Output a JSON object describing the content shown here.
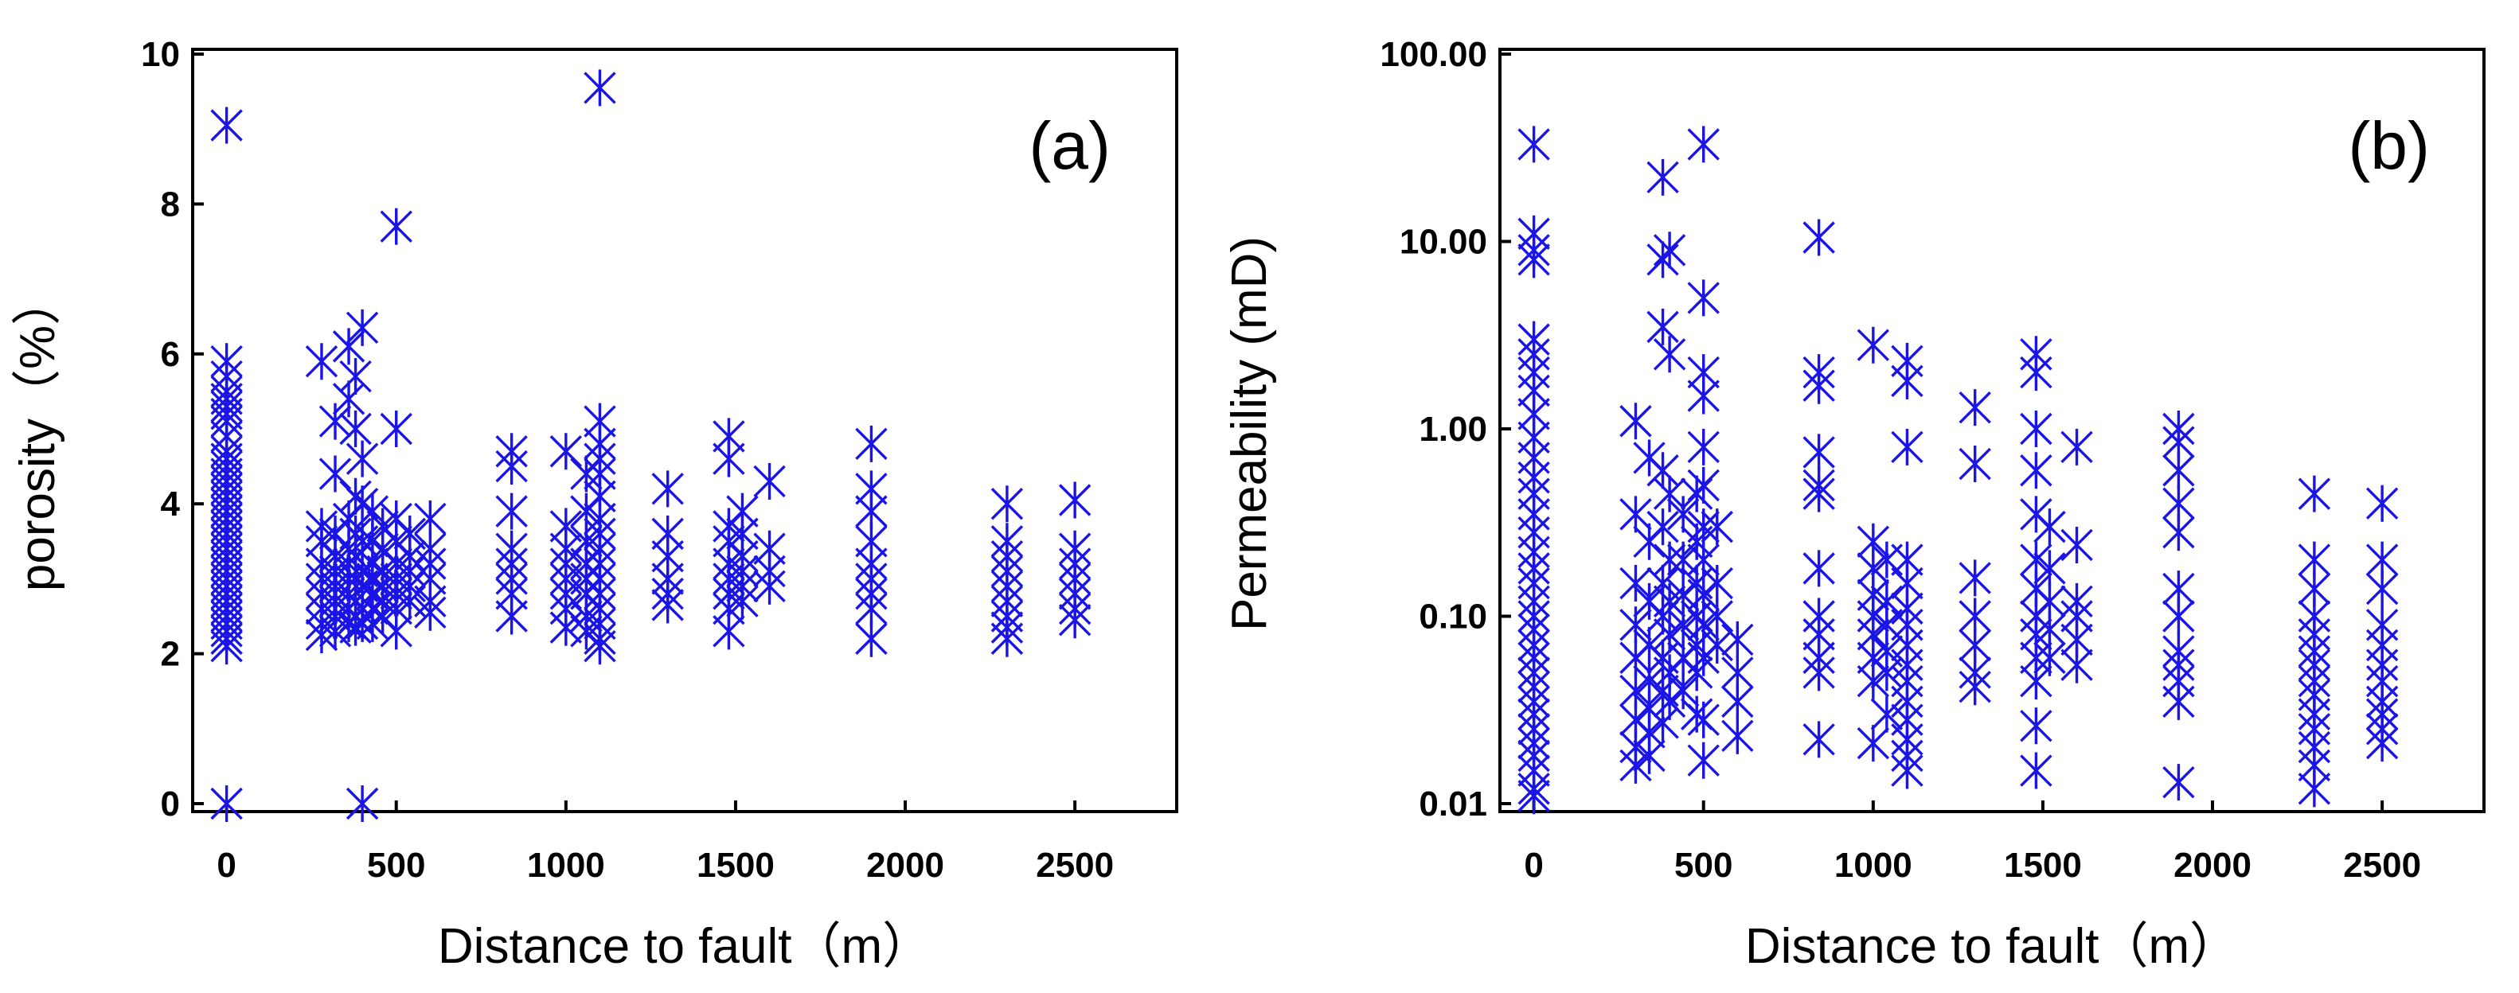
{
  "chart_data": [
    {
      "type": "scatter",
      "panel_label": "(a)",
      "xlabel": "Distance to fault（m）",
      "ylabel": "porosity（%）",
      "xlim": [
        -100,
        2800
      ],
      "ylim": [
        0,
        10
      ],
      "yscale": "linear",
      "xticks": [
        0,
        500,
        1000,
        1500,
        2000,
        2500
      ],
      "yticks": [
        0,
        2,
        4,
        6,
        8,
        10
      ],
      "ytick_labels": [
        "0",
        "2",
        "4",
        "6",
        "8",
        "10"
      ],
      "marker": "asterisk",
      "color": "#1a14e6",
      "series": [
        {
          "x": 0,
          "y": [
            9.05,
            0,
            5.9,
            5.7,
            5.5,
            5.4,
            5.3,
            5.2,
            5.1,
            4.9,
            4.7,
            4.6,
            4.5,
            4.4,
            4.3,
            4.2,
            4.1,
            4.0,
            3.9,
            3.8,
            3.7,
            3.6,
            3.5,
            3.4,
            3.3,
            3.2,
            3.1,
            3.0,
            2.9,
            2.8,
            2.7,
            2.6,
            2.5,
            2.4,
            2.3,
            2.2,
            2.1
          ]
        },
        {
          "x": 280,
          "y": [
            5.9,
            3.7,
            3.5,
            3.2,
            3.0,
            2.8,
            2.6,
            2.4,
            2.25
          ]
        },
        {
          "x": 320,
          "y": [
            5.1,
            4.4,
            3.6,
            3.3,
            3.1,
            2.9,
            2.7,
            2.5,
            2.3
          ]
        },
        {
          "x": 360,
          "y": [
            6.1,
            5.4,
            3.8,
            3.4,
            3.2,
            3.0,
            2.8,
            2.6,
            2.4
          ]
        },
        {
          "x": 380,
          "y": [
            5.7,
            5.0,
            4.1,
            3.6,
            3.3,
            3.0,
            2.7,
            2.5,
            2.35
          ]
        },
        {
          "x": 400,
          "y": [
            6.35,
            4.6,
            4.0,
            3.5,
            3.1,
            2.9,
            2.6,
            2.4,
            0
          ]
        },
        {
          "x": 430,
          "y": [
            3.9,
            3.5,
            3.2,
            3.0,
            2.8,
            2.6,
            2.4
          ]
        },
        {
          "x": 460,
          "y": [
            3.7,
            3.4,
            3.1,
            2.9,
            2.7,
            2.5
          ]
        },
        {
          "x": 500,
          "y": [
            7.7,
            5.0,
            3.8,
            3.5,
            3.2,
            3.0,
            2.8,
            2.6,
            2.3
          ]
        },
        {
          "x": 540,
          "y": [
            3.6,
            3.3,
            3.1,
            2.9,
            2.7
          ]
        },
        {
          "x": 600,
          "y": [
            3.8,
            3.4,
            3.2,
            3.0,
            2.7,
            2.55
          ]
        },
        {
          "x": 840,
          "y": [
            4.7,
            4.5,
            3.9,
            3.4,
            3.2,
            3.0,
            2.8,
            2.5
          ]
        },
        {
          "x": 1000,
          "y": [
            4.7,
            3.7,
            3.4,
            3.2,
            3.0,
            2.8,
            2.6,
            2.35
          ]
        },
        {
          "x": 1060,
          "y": [
            4.4,
            3.9,
            3.5,
            3.2,
            3.0,
            2.8,
            2.5,
            2.3
          ]
        },
        {
          "x": 1100,
          "y": [
            9.55,
            5.1,
            4.8,
            4.6,
            4.4,
            4.1,
            3.8,
            3.6,
            3.4,
            3.2,
            3.0,
            2.8,
            2.6,
            2.4,
            2.2,
            2.1
          ]
        },
        {
          "x": 1300,
          "y": [
            4.2,
            3.6,
            3.3,
            3.0,
            2.8,
            2.65
          ]
        },
        {
          "x": 1480,
          "y": [
            4.9,
            4.6,
            3.7,
            3.5,
            3.2,
            3.0,
            2.8,
            2.6,
            2.3
          ]
        },
        {
          "x": 1520,
          "y": [
            3.9,
            3.6,
            3.3,
            3.1,
            2.9,
            2.7
          ]
        },
        {
          "x": 1600,
          "y": [
            4.3,
            3.4,
            3.1,
            2.9
          ]
        },
        {
          "x": 1900,
          "y": [
            4.8,
            4.2,
            3.9,
            3.5,
            3.2,
            3.0,
            2.8,
            2.6,
            2.2
          ]
        },
        {
          "x": 2300,
          "y": [
            4.0,
            3.5,
            3.3,
            3.1,
            2.9,
            2.7,
            2.5,
            2.35,
            2.2
          ]
        },
        {
          "x": 2500,
          "y": [
            4.05,
            3.4,
            3.2,
            3.0,
            2.8,
            2.6,
            2.45
          ]
        }
      ]
    },
    {
      "type": "scatter",
      "panel_label": "(b)",
      "xlabel": "Distance to fault（m）",
      "ylabel": "Permeability (mD)",
      "xlim": [
        -100,
        2800
      ],
      "ylim": [
        0.01,
        100
      ],
      "yscale": "log",
      "xticks": [
        0,
        500,
        1000,
        1500,
        2000,
        2500
      ],
      "yticks": [
        0.01,
        0.1,
        1,
        10,
        100
      ],
      "ytick_labels": [
        "0.01",
        "0.10",
        "1.00",
        "10.00",
        "100.00"
      ],
      "marker": "asterisk",
      "color": "#1a14e6",
      "series": [
        {
          "x": 0,
          "y": [
            33,
            11,
            9,
            8,
            3,
            2.5,
            2,
            1.6,
            1.2,
            0.9,
            0.7,
            0.55,
            0.45,
            0.35,
            0.28,
            0.22,
            0.18,
            0.15,
            0.12,
            0.1,
            0.085,
            0.07,
            0.06,
            0.05,
            0.042,
            0.035,
            0.03,
            0.025,
            0.021,
            0.018,
            0.015,
            0.012,
            0.011
          ]
        },
        {
          "x": 300,
          "y": [
            1.1,
            0.35,
            0.15,
            0.09,
            0.06,
            0.04,
            0.028,
            0.02,
            0.016
          ]
        },
        {
          "x": 340,
          "y": [
            0.7,
            0.25,
            0.12,
            0.07,
            0.045,
            0.032,
            0.024,
            0.018
          ]
        },
        {
          "x": 380,
          "y": [
            22,
            8,
            3.5,
            0.6,
            0.3,
            0.15,
            0.1,
            0.06,
            0.04,
            0.027
          ]
        },
        {
          "x": 400,
          "y": [
            9,
            2.5,
            0.45,
            0.2,
            0.12,
            0.08,
            0.05,
            0.035
          ]
        },
        {
          "x": 440,
          "y": [
            0.35,
            0.2,
            0.13,
            0.09,
            0.06,
            0.04
          ]
        },
        {
          "x": 480,
          "y": [
            0.45,
            0.25,
            0.15,
            0.1,
            0.07,
            0.05,
            0.03
          ]
        },
        {
          "x": 500,
          "y": [
            33,
            5,
            2,
            1.5,
            0.8,
            0.5,
            0.3,
            0.2,
            0.13,
            0.09,
            0.06,
            0.028,
            0.017
          ]
        },
        {
          "x": 540,
          "y": [
            0.3,
            0.15,
            0.1,
            0.07
          ]
        },
        {
          "x": 600,
          "y": [
            0.075,
            0.05,
            0.035,
            0.023
          ]
        },
        {
          "x": 840,
          "y": [
            10.5,
            2,
            1.7,
            0.75,
            0.5,
            0.45,
            0.18,
            0.1,
            0.08,
            0.06,
            0.05,
            0.022
          ]
        },
        {
          "x": 1000,
          "y": [
            2.8,
            0.25,
            0.18,
            0.13,
            0.1,
            0.08,
            0.06,
            0.045,
            0.021
          ]
        },
        {
          "x": 1040,
          "y": [
            0.2,
            0.12,
            0.09,
            0.065,
            0.05,
            0.03
          ]
        },
        {
          "x": 1100,
          "y": [
            2.3,
            1.8,
            0.8,
            0.2,
            0.15,
            0.11,
            0.09,
            0.07,
            0.055,
            0.045,
            0.035,
            0.028,
            0.022,
            0.018,
            0.015
          ]
        },
        {
          "x": 1300,
          "y": [
            1.3,
            0.65,
            0.16,
            0.1,
            0.07,
            0.05,
            0.042
          ]
        },
        {
          "x": 1480,
          "y": [
            2.5,
            2,
            1,
            0.6,
            0.35,
            0.2,
            0.14,
            0.1,
            0.08,
            0.06,
            0.045,
            0.026,
            0.015
          ]
        },
        {
          "x": 1520,
          "y": [
            0.3,
            0.18,
            0.12,
            0.085,
            0.06
          ]
        },
        {
          "x": 1600,
          "y": [
            0.8,
            0.24,
            0.12,
            0.1,
            0.075,
            0.055
          ]
        },
        {
          "x": 1900,
          "y": [
            1.0,
            0.85,
            0.6,
            0.4,
            0.28,
            0.14,
            0.1,
            0.065,
            0.055,
            0.045,
            0.035,
            0.013
          ]
        },
        {
          "x": 2300,
          "y": [
            0.45,
            0.2,
            0.14,
            0.1,
            0.08,
            0.065,
            0.055,
            0.045,
            0.038,
            0.03,
            0.025,
            0.02,
            0.016,
            0.012
          ]
        },
        {
          "x": 2500,
          "y": [
            0.4,
            0.2,
            0.14,
            0.09,
            0.07,
            0.055,
            0.045,
            0.035,
            0.03,
            0.025,
            0.021
          ]
        }
      ]
    }
  ]
}
